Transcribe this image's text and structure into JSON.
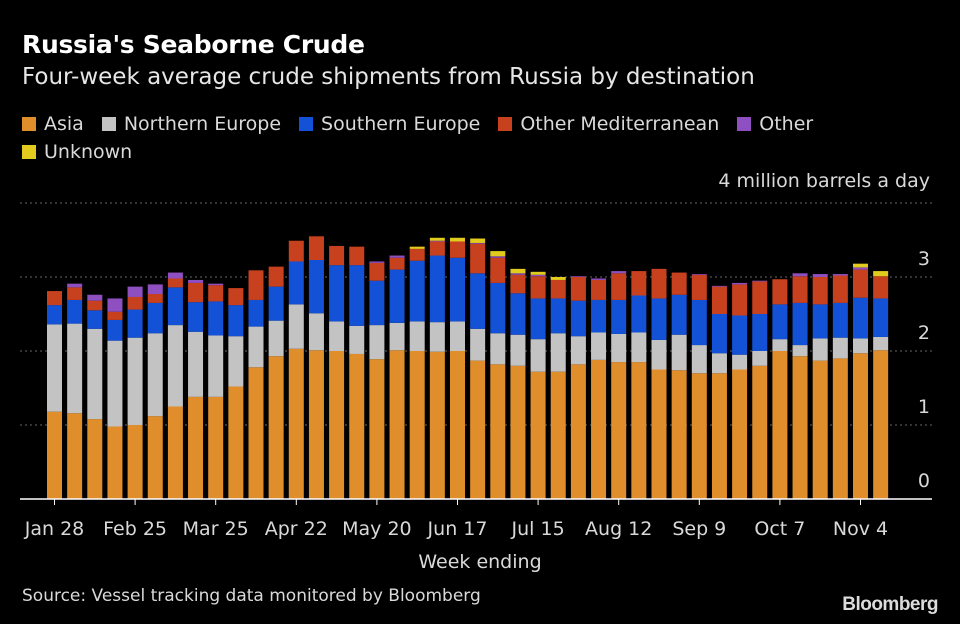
{
  "header": {
    "title": "Russia's Seaborne Crude",
    "subtitle": "Four-week average crude shipments from Russia by destination"
  },
  "footer": {
    "source": "Source: Vessel tracking data monitored by Bloomberg",
    "brand": "Bloomberg"
  },
  "colors": {
    "Asia": "#e08e2b",
    "Northern Europe": "#c3c3c3",
    "Southern Europe": "#1352d6",
    "Other Mediterranean": "#c8411f",
    "Other": "#8e4fc0",
    "Unknown": "#e2cb1c",
    "background": "#000000",
    "grid": "#666666",
    "text": "#d9d9d9"
  },
  "chart_data": {
    "type": "bar",
    "stacked": true,
    "unit_label": "4 million barrels a day",
    "xlabel": "Week ending",
    "ylabel": "",
    "ylim": [
      0,
      4
    ],
    "yticks": [
      0,
      1,
      2,
      3
    ],
    "grid": true,
    "legend_position": "top-left",
    "x_tick_labels": [
      {
        "index": 0,
        "label": "Jan 28"
      },
      {
        "index": 4,
        "label": "Feb 25"
      },
      {
        "index": 8,
        "label": "Mar 25"
      },
      {
        "index": 12,
        "label": "Apr 22"
      },
      {
        "index": 16,
        "label": "May 20"
      },
      {
        "index": 20,
        "label": "Jun 17"
      },
      {
        "index": 24,
        "label": "Jul 15"
      },
      {
        "index": 28,
        "label": "Aug 12"
      },
      {
        "index": 32,
        "label": "Sep 9"
      },
      {
        "index": 36,
        "label": "Oct 7"
      },
      {
        "index": 40,
        "label": "Nov 4"
      }
    ],
    "series": [
      {
        "name": "Asia",
        "values": [
          1.18,
          1.16,
          1.08,
          0.98,
          1.0,
          1.12,
          1.25,
          1.38,
          1.38,
          1.52,
          1.78,
          1.93,
          2.03,
          2.01,
          2.0,
          1.96,
          1.89,
          2.01,
          2.0,
          1.99,
          2.0,
          1.87,
          1.82,
          1.8,
          1.72,
          1.72,
          1.82,
          1.88,
          1.85,
          1.85,
          1.75,
          1.74,
          1.7,
          1.7,
          1.75,
          1.8,
          2.0,
          1.93,
          1.87,
          1.9,
          1.97,
          2.01
        ]
      },
      {
        "name": "Northern Europe",
        "values": [
          1.18,
          1.21,
          1.22,
          1.16,
          1.18,
          1.12,
          1.1,
          0.88,
          0.83,
          0.68,
          0.55,
          0.48,
          0.6,
          0.5,
          0.4,
          0.38,
          0.46,
          0.37,
          0.4,
          0.4,
          0.4,
          0.43,
          0.42,
          0.42,
          0.44,
          0.52,
          0.38,
          0.37,
          0.38,
          0.4,
          0.4,
          0.48,
          0.38,
          0.27,
          0.2,
          0.2,
          0.16,
          0.15,
          0.3,
          0.28,
          0.2,
          0.18
        ]
      },
      {
        "name": "Southern Europe",
        "values": [
          0.26,
          0.32,
          0.25,
          0.28,
          0.38,
          0.41,
          0.51,
          0.4,
          0.46,
          0.42,
          0.36,
          0.46,
          0.58,
          0.72,
          0.76,
          0.82,
          0.6,
          0.72,
          0.82,
          0.9,
          0.86,
          0.75,
          0.68,
          0.56,
          0.55,
          0.47,
          0.48,
          0.44,
          0.46,
          0.5,
          0.56,
          0.54,
          0.61,
          0.53,
          0.53,
          0.5,
          0.47,
          0.57,
          0.46,
          0.47,
          0.55,
          0.52
        ]
      },
      {
        "name": "Other Mediterranean",
        "values": [
          0.19,
          0.17,
          0.13,
          0.11,
          0.17,
          0.12,
          0.12,
          0.26,
          0.22,
          0.23,
          0.4,
          0.27,
          0.28,
          0.32,
          0.26,
          0.25,
          0.24,
          0.16,
          0.16,
          0.19,
          0.22,
          0.4,
          0.34,
          0.25,
          0.3,
          0.25,
          0.32,
          0.27,
          0.36,
          0.33,
          0.4,
          0.3,
          0.34,
          0.37,
          0.42,
          0.44,
          0.34,
          0.36,
          0.37,
          0.37,
          0.38,
          0.3
        ]
      },
      {
        "name": "Other",
        "values": [
          0.0,
          0.05,
          0.08,
          0.18,
          0.14,
          0.13,
          0.08,
          0.04,
          0.02,
          0.0,
          0.0,
          0.0,
          0.0,
          0.0,
          0.0,
          0.0,
          0.02,
          0.03,
          0.0,
          0.01,
          0.0,
          0.01,
          0.02,
          0.02,
          0.02,
          0.0,
          0.01,
          0.02,
          0.03,
          0.0,
          0.0,
          0.0,
          0.01,
          0.01,
          0.02,
          0.01,
          0.0,
          0.04,
          0.04,
          0.02,
          0.03,
          0.0
        ]
      },
      {
        "name": "Unknown",
        "values": [
          0.0,
          0.0,
          0.0,
          0.0,
          0.0,
          0.0,
          0.0,
          0.0,
          0.0,
          0.0,
          0.0,
          0.0,
          0.0,
          0.0,
          0.0,
          0.0,
          0.0,
          0.0,
          0.03,
          0.04,
          0.05,
          0.06,
          0.07,
          0.06,
          0.04,
          0.04,
          0.0,
          0.0,
          0.0,
          0.0,
          0.0,
          0.0,
          0.0,
          0.0,
          0.0,
          0.0,
          0.0,
          0.0,
          0.0,
          0.0,
          0.05,
          0.07
        ]
      }
    ]
  }
}
